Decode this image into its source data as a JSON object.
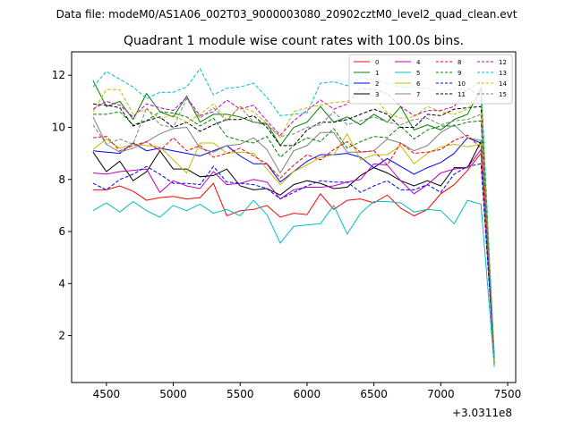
{
  "header": {
    "data_file": "Data file: modeM0/AS1A06_002T03_9000003080_20902cztM0_level2_quad_clean.evt"
  },
  "chart_data": {
    "type": "line",
    "title": "Quadrant 1 module wise count rates with 100.0s bins.",
    "xlabel": "",
    "ylabel": "",
    "x_offset_label": "+3.0311e8",
    "xlim": [
      4240,
      7560
    ],
    "ylim": [
      0.2,
      12.9
    ],
    "xticks": [
      4500,
      5000,
      5500,
      6000,
      6500,
      7000,
      7500
    ],
    "yticks": [
      2,
      4,
      6,
      8,
      10,
      12
    ],
    "legend_position": "top-right",
    "x": [
      4400,
      4500,
      4600,
      4700,
      4800,
      4900,
      5000,
      5100,
      5200,
      5300,
      5400,
      5500,
      5600,
      5700,
      5800,
      5900,
      6000,
      6100,
      6200,
      6300,
      6400,
      6500,
      6600,
      6700,
      6800,
      6900,
      7000,
      7100,
      7200,
      7300,
      7400
    ],
    "series": [
      {
        "name": "0",
        "color": "#ff0000",
        "style": "solid",
        "values": [
          7.6,
          7.6,
          7.75,
          7.55,
          7.2,
          7.3,
          7.35,
          7.25,
          7.3,
          7.85,
          6.6,
          6.8,
          6.85,
          7.0,
          6.55,
          6.7,
          6.65,
          7.45,
          6.85,
          7.2,
          7.25,
          7.1,
          7.4,
          6.9,
          6.6,
          6.85,
          7.45,
          7.8,
          8.35,
          9.0,
          1.0
        ]
      },
      {
        "name": "1",
        "color": "#008000",
        "style": "solid",
        "values": [
          11.8,
          10.8,
          11.0,
          10.3,
          11.3,
          10.6,
          10.4,
          11.2,
          10.2,
          10.5,
          10.5,
          10.4,
          10.2,
          10.15,
          9.3,
          10.0,
          10.2,
          10.8,
          10.2,
          10.4,
          10.1,
          10.5,
          10.2,
          10.8,
          9.9,
          10.1,
          9.9,
          10.3,
          10.5,
          11.5,
          0.9
        ]
      },
      {
        "name": "2",
        "color": "#0000ff",
        "style": "solid",
        "values": [
          9.1,
          9.05,
          9.0,
          9.4,
          9.1,
          9.2,
          9.1,
          9.0,
          8.9,
          9.1,
          9.3,
          8.9,
          8.6,
          8.6,
          7.9,
          8.3,
          8.7,
          8.95,
          8.95,
          9.0,
          8.85,
          8.45,
          8.8,
          8.5,
          8.2,
          8.45,
          8.65,
          9.0,
          9.6,
          9.4,
          1.0
        ]
      },
      {
        "name": "3",
        "color": "#000000",
        "style": "solid",
        "values": [
          9.05,
          8.3,
          8.7,
          7.95,
          8.3,
          9.1,
          8.4,
          8.4,
          8.1,
          8.15,
          8.4,
          7.75,
          7.6,
          7.65,
          7.4,
          7.8,
          7.95,
          7.85,
          7.65,
          7.7,
          8.15,
          8.45,
          8.25,
          7.95,
          7.75,
          7.95,
          7.75,
          8.45,
          8.45,
          9.45,
          1.1
        ]
      },
      {
        "name": "4",
        "color": "#bf00bf",
        "style": "solid",
        "values": [
          8.25,
          8.2,
          8.3,
          8.35,
          8.4,
          7.5,
          7.95,
          7.75,
          7.65,
          8.3,
          7.8,
          7.85,
          8.0,
          7.9,
          7.25,
          7.6,
          7.7,
          7.7,
          7.75,
          7.9,
          8.0,
          8.6,
          8.55,
          7.95,
          7.45,
          7.8,
          8.25,
          8.4,
          8.45,
          9.15,
          1.1
        ]
      },
      {
        "name": "5",
        "color": "#00bfbf",
        "style": "solid",
        "values": [
          6.8,
          7.1,
          6.75,
          7.15,
          6.8,
          6.55,
          7.0,
          6.8,
          7.05,
          6.7,
          6.85,
          6.6,
          7.2,
          6.65,
          5.55,
          6.2,
          6.25,
          6.3,
          7.0,
          5.9,
          6.7,
          7.15,
          7.15,
          7.1,
          6.75,
          6.85,
          6.8,
          6.3,
          7.2,
          7.05,
          0.8
        ]
      },
      {
        "name": "6",
        "color": "#bfbf00",
        "style": "solid",
        "values": [
          9.15,
          9.55,
          9.2,
          9.35,
          9.3,
          9.25,
          8.75,
          8.25,
          9.4,
          9.4,
          9.0,
          9.05,
          9.0,
          8.4,
          7.8,
          8.3,
          8.55,
          8.85,
          8.95,
          9.75,
          8.75,
          8.95,
          8.95,
          9.3,
          8.6,
          9.0,
          9.25,
          9.35,
          9.25,
          9.35,
          1.0
        ]
      },
      {
        "name": "7",
        "color": "#808080",
        "style": "solid",
        "values": [
          10.4,
          9.35,
          9.05,
          9.2,
          9.45,
          9.75,
          9.95,
          10.0,
          9.2,
          9.05,
          9.3,
          9.35,
          9.6,
          9.15,
          8.25,
          9.1,
          9.3,
          9.8,
          9.8,
          9.05,
          9.05,
          9.1,
          9.55,
          9.4,
          9.1,
          9.3,
          9.8,
          10.1,
          9.6,
          9.5,
          1.1
        ]
      },
      {
        "name": "8",
        "color": "#ff0000",
        "style": "dashed",
        "values": [
          9.6,
          9.65,
          9.1,
          9.3,
          9.45,
          9.1,
          9.6,
          9.1,
          9.3,
          8.85,
          9.0,
          9.2,
          8.9,
          8.6,
          8.05,
          8.55,
          8.95,
          8.75,
          9.15,
          9.45,
          9.05,
          9.1,
          8.55,
          9.4,
          9.0,
          9.05,
          9.15,
          9.5,
          9.7,
          9.2,
          1.1
        ]
      },
      {
        "name": "9",
        "color": "#008000",
        "style": "dashed",
        "values": [
          10.5,
          10.5,
          10.6,
          10.1,
          10.25,
          10.6,
          10.55,
          10.4,
          10.05,
          10.35,
          9.65,
          9.5,
          9.4,
          9.65,
          8.85,
          9.3,
          9.6,
          9.45,
          9.95,
          9.2,
          9.45,
          9.65,
          9.6,
          10.05,
          9.55,
          9.9,
          10.05,
          10.05,
          10.2,
          10.25,
          1.0
        ]
      },
      {
        "name": "10",
        "color": "#0000ff",
        "style": "dashed",
        "values": [
          7.85,
          7.6,
          8.0,
          8.2,
          8.5,
          8.2,
          7.85,
          7.85,
          7.8,
          8.5,
          7.9,
          7.85,
          7.8,
          7.65,
          7.25,
          7.5,
          7.75,
          7.95,
          7.9,
          7.9,
          7.5,
          7.75,
          7.95,
          7.6,
          7.6,
          7.8,
          7.5,
          8.2,
          8.5,
          8.6,
          1.1
        ]
      },
      {
        "name": "11",
        "color": "#000000",
        "style": "dashed",
        "values": [
          10.9,
          10.85,
          10.75,
          10.05,
          10.25,
          10.4,
          10.0,
          10.2,
          9.85,
          10.1,
          10.3,
          10.3,
          10.45,
          10.0,
          9.3,
          9.3,
          9.9,
          10.2,
          10.2,
          10.3,
          10.5,
          10.7,
          10.5,
          10.0,
          10.0,
          10.5,
          10.45,
          10.7,
          10.75,
          10.8,
          1.2
        ]
      },
      {
        "name": "12",
        "color": "#bf00bf",
        "style": "dashed",
        "values": [
          10.7,
          11.0,
          10.85,
          10.4,
          10.9,
          10.75,
          10.65,
          11.15,
          10.45,
          10.6,
          11.05,
          10.7,
          10.85,
          10.25,
          9.7,
          10.25,
          10.65,
          11.05,
          10.7,
          10.9,
          11.5,
          11.45,
          11.3,
          10.8,
          10.45,
          10.65,
          10.65,
          10.8,
          11.5,
          11.2,
          1.0
        ]
      },
      {
        "name": "13",
        "color": "#00bfbf",
        "style": "dashed",
        "values": [
          11.55,
          12.15,
          11.85,
          11.55,
          11.1,
          11.35,
          11.35,
          11.55,
          12.25,
          11.25,
          11.5,
          11.55,
          11.7,
          11.15,
          10.45,
          10.5,
          10.55,
          11.7,
          11.75,
          11.6,
          11.9,
          11.85,
          11.7,
          11.55,
          11.55,
          11.5,
          11.35,
          11.5,
          11.4,
          11.8,
          1.2
        ]
      },
      {
        "name": "14",
        "color": "#bfbf00",
        "style": "dashed",
        "values": [
          10.6,
          11.45,
          11.45,
          10.5,
          10.7,
          10.35,
          10.45,
          10.2,
          10.5,
          10.9,
          10.3,
          10.8,
          10.6,
          10.15,
          9.6,
          10.6,
          10.75,
          10.85,
          10.95,
          11.0,
          11.3,
          11.2,
          10.55,
          10.35,
          10.4,
          10.8,
          10.6,
          10.5,
          10.7,
          11.3,
          1.0
        ]
      },
      {
        "name": "15",
        "color": "#808080",
        "style": "dashed",
        "values": [
          10.1,
          9.35,
          9.55,
          9.35,
          10.75,
          10.1,
          10.0,
          11.1,
          10.35,
          10.75,
          10.25,
          10.8,
          10.2,
          10.1,
          9.65,
          9.75,
          10.0,
          10.1,
          10.6,
          10.1,
          10.25,
          10.4,
          10.2,
          10.1,
          10.3,
          10.35,
          10.1,
          10.25,
          10.3,
          10.5,
          1.3
        ]
      }
    ]
  }
}
